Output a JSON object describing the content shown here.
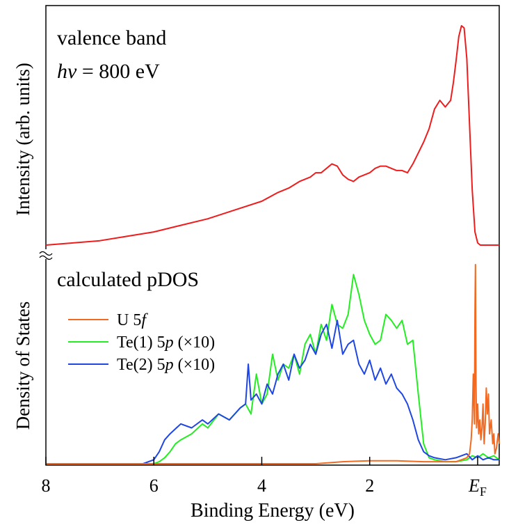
{
  "chart_data": [
    {
      "type": "line",
      "title": "",
      "annotation_lines": [
        "valence band",
        "hv = 800 eV"
      ],
      "annotation_italic": "hv",
      "annotation_rest": " = 800 eV",
      "ylabel": "Intensity (arb. units)",
      "x_reversed": true,
      "xlim": [
        8,
        -0.4
      ],
      "ylim": [
        0,
        1
      ],
      "series": [
        {
          "name": "",
          "color": "#ee1c1c",
          "x": [
            8.0,
            7.5,
            7.0,
            6.5,
            6.0,
            5.5,
            5.0,
            4.5,
            4.0,
            3.7,
            3.5,
            3.3,
            3.1,
            3.0,
            2.9,
            2.8,
            2.7,
            2.6,
            2.5,
            2.4,
            2.3,
            2.2,
            2.1,
            2.0,
            1.9,
            1.8,
            1.7,
            1.6,
            1.5,
            1.4,
            1.3,
            1.2,
            1.1,
            1.0,
            0.9,
            0.8,
            0.7,
            0.6,
            0.5,
            0.45,
            0.4,
            0.35,
            0.3,
            0.25,
            0.2,
            0.15,
            0.1,
            0.05,
            0.0,
            -0.05,
            -0.1,
            -0.2,
            -0.3,
            -0.4
          ],
          "values": [
            0.0,
            0.01,
            0.02,
            0.04,
            0.06,
            0.09,
            0.12,
            0.16,
            0.2,
            0.24,
            0.26,
            0.29,
            0.31,
            0.33,
            0.33,
            0.35,
            0.37,
            0.36,
            0.32,
            0.3,
            0.29,
            0.31,
            0.32,
            0.33,
            0.35,
            0.36,
            0.36,
            0.35,
            0.34,
            0.34,
            0.33,
            0.37,
            0.42,
            0.47,
            0.53,
            0.62,
            0.66,
            0.63,
            0.66,
            0.74,
            0.84,
            0.95,
            1.0,
            0.99,
            0.85,
            0.55,
            0.25,
            0.06,
            0.01,
            0.0,
            0.0,
            0.0,
            0.0,
            0.0
          ]
        }
      ]
    },
    {
      "type": "line",
      "title": "",
      "annotation_lines": [
        "calculated pDOS"
      ],
      "ylabel": "Density of States",
      "xlabel": "Binding Energy (eV)",
      "x_reversed": true,
      "xlim": [
        8,
        -0.4
      ],
      "ylim": [
        0,
        1
      ],
      "xticks": [
        8,
        6,
        4,
        2,
        0
      ],
      "xtick_labels": [
        "8",
        "6",
        "4",
        "2",
        "E"
      ],
      "ef_subscript": "F",
      "legend_position": "top-left",
      "series": [
        {
          "name": "U 5f",
          "name_prefix": "U 5",
          "name_italic": "f",
          "name_suffix": "",
          "color": "#f26a22",
          "x": [
            8.0,
            7.0,
            6.0,
            5.0,
            4.0,
            3.0,
            2.5,
            2.0,
            1.5,
            1.0,
            0.8,
            0.6,
            0.4,
            0.3,
            0.2,
            0.15,
            0.12,
            0.1,
            0.08,
            0.06,
            0.05,
            0.04,
            0.03,
            0.02,
            0.0,
            -0.02,
            -0.04,
            -0.06,
            -0.08,
            -0.1,
            -0.12,
            -0.14,
            -0.16,
            -0.18,
            -0.2,
            -0.22,
            -0.25,
            -0.28,
            -0.3,
            -0.32,
            -0.35,
            -0.38,
            -0.4
          ],
          "values": [
            0.0,
            0.0,
            0.0,
            0.0,
            0.0,
            0.0,
            0.01,
            0.015,
            0.015,
            0.01,
            0.01,
            0.01,
            0.01,
            0.02,
            0.03,
            0.05,
            0.12,
            0.22,
            0.45,
            0.2,
            0.75,
            1.0,
            0.4,
            0.18,
            0.3,
            0.15,
            0.22,
            0.12,
            0.18,
            0.3,
            0.1,
            0.2,
            0.38,
            0.25,
            0.35,
            0.15,
            0.22,
            0.1,
            0.15,
            0.05,
            0.08,
            0.15,
            0.1
          ]
        },
        {
          "name": "Te(1) 5p (×10)",
          "name_prefix": "Te(1) 5",
          "name_italic": "p",
          "name_suffix": " (×10)",
          "color": "#22ee22",
          "x": [
            8.0,
            7.0,
            6.0,
            5.9,
            5.8,
            5.7,
            5.6,
            5.5,
            5.3,
            5.1,
            5.0,
            4.8,
            4.6,
            4.4,
            4.3,
            4.2,
            4.1,
            4.0,
            3.9,
            3.8,
            3.7,
            3.6,
            3.5,
            3.4,
            3.3,
            3.2,
            3.1,
            3.0,
            2.9,
            2.8,
            2.7,
            2.6,
            2.5,
            2.4,
            2.3,
            2.2,
            2.1,
            2.0,
            1.9,
            1.8,
            1.7,
            1.6,
            1.5,
            1.4,
            1.3,
            1.2,
            1.1,
            1.0,
            0.9,
            0.8,
            0.6,
            0.4,
            0.2,
            0.1,
            0.0,
            -0.1,
            -0.2,
            -0.3,
            -0.4
          ],
          "values": [
            0.0,
            0.0,
            0.0,
            0.01,
            0.03,
            0.06,
            0.1,
            0.12,
            0.15,
            0.2,
            0.18,
            0.25,
            0.22,
            0.28,
            0.3,
            0.25,
            0.45,
            0.3,
            0.35,
            0.55,
            0.42,
            0.5,
            0.48,
            0.55,
            0.45,
            0.6,
            0.65,
            0.55,
            0.7,
            0.62,
            0.8,
            0.7,
            0.68,
            0.75,
            0.95,
            0.85,
            0.72,
            0.65,
            0.6,
            0.62,
            0.75,
            0.72,
            0.68,
            0.72,
            0.6,
            0.62,
            0.35,
            0.1,
            0.03,
            0.02,
            0.01,
            0.01,
            0.02,
            0.04,
            0.03,
            0.05,
            0.03,
            0.04,
            0.02
          ]
        },
        {
          "name": "Te(2) 5p (×10)",
          "name_prefix": "Te(2) 5",
          "name_italic": "p",
          "name_suffix": " (×10)",
          "color": "#1f46e0",
          "x": [
            8.0,
            7.0,
            6.2,
            6.0,
            5.9,
            5.8,
            5.7,
            5.5,
            5.3,
            5.1,
            5.0,
            4.8,
            4.6,
            4.5,
            4.4,
            4.3,
            4.25,
            4.2,
            4.1,
            4.0,
            3.9,
            3.8,
            3.7,
            3.6,
            3.5,
            3.4,
            3.3,
            3.2,
            3.1,
            3.0,
            2.9,
            2.8,
            2.7,
            2.6,
            2.5,
            2.4,
            2.3,
            2.2,
            2.1,
            2.0,
            1.9,
            1.8,
            1.7,
            1.6,
            1.5,
            1.4,
            1.3,
            1.2,
            1.1,
            1.0,
            0.9,
            0.8,
            0.6,
            0.4,
            0.2,
            0.1,
            0.0,
            -0.1,
            -0.2,
            -0.3,
            -0.4
          ],
          "values": [
            0.0,
            0.0,
            0.0,
            0.02,
            0.06,
            0.12,
            0.15,
            0.2,
            0.18,
            0.22,
            0.2,
            0.25,
            0.22,
            0.25,
            0.28,
            0.3,
            0.5,
            0.32,
            0.35,
            0.3,
            0.4,
            0.35,
            0.45,
            0.5,
            0.42,
            0.55,
            0.48,
            0.52,
            0.6,
            0.55,
            0.65,
            0.7,
            0.58,
            0.72,
            0.55,
            0.6,
            0.62,
            0.5,
            0.45,
            0.52,
            0.42,
            0.48,
            0.4,
            0.45,
            0.38,
            0.35,
            0.3,
            0.22,
            0.12,
            0.06,
            0.04,
            0.03,
            0.02,
            0.03,
            0.05,
            0.02,
            0.04,
            0.02,
            0.03,
            0.02,
            0.02
          ]
        }
      ]
    }
  ]
}
